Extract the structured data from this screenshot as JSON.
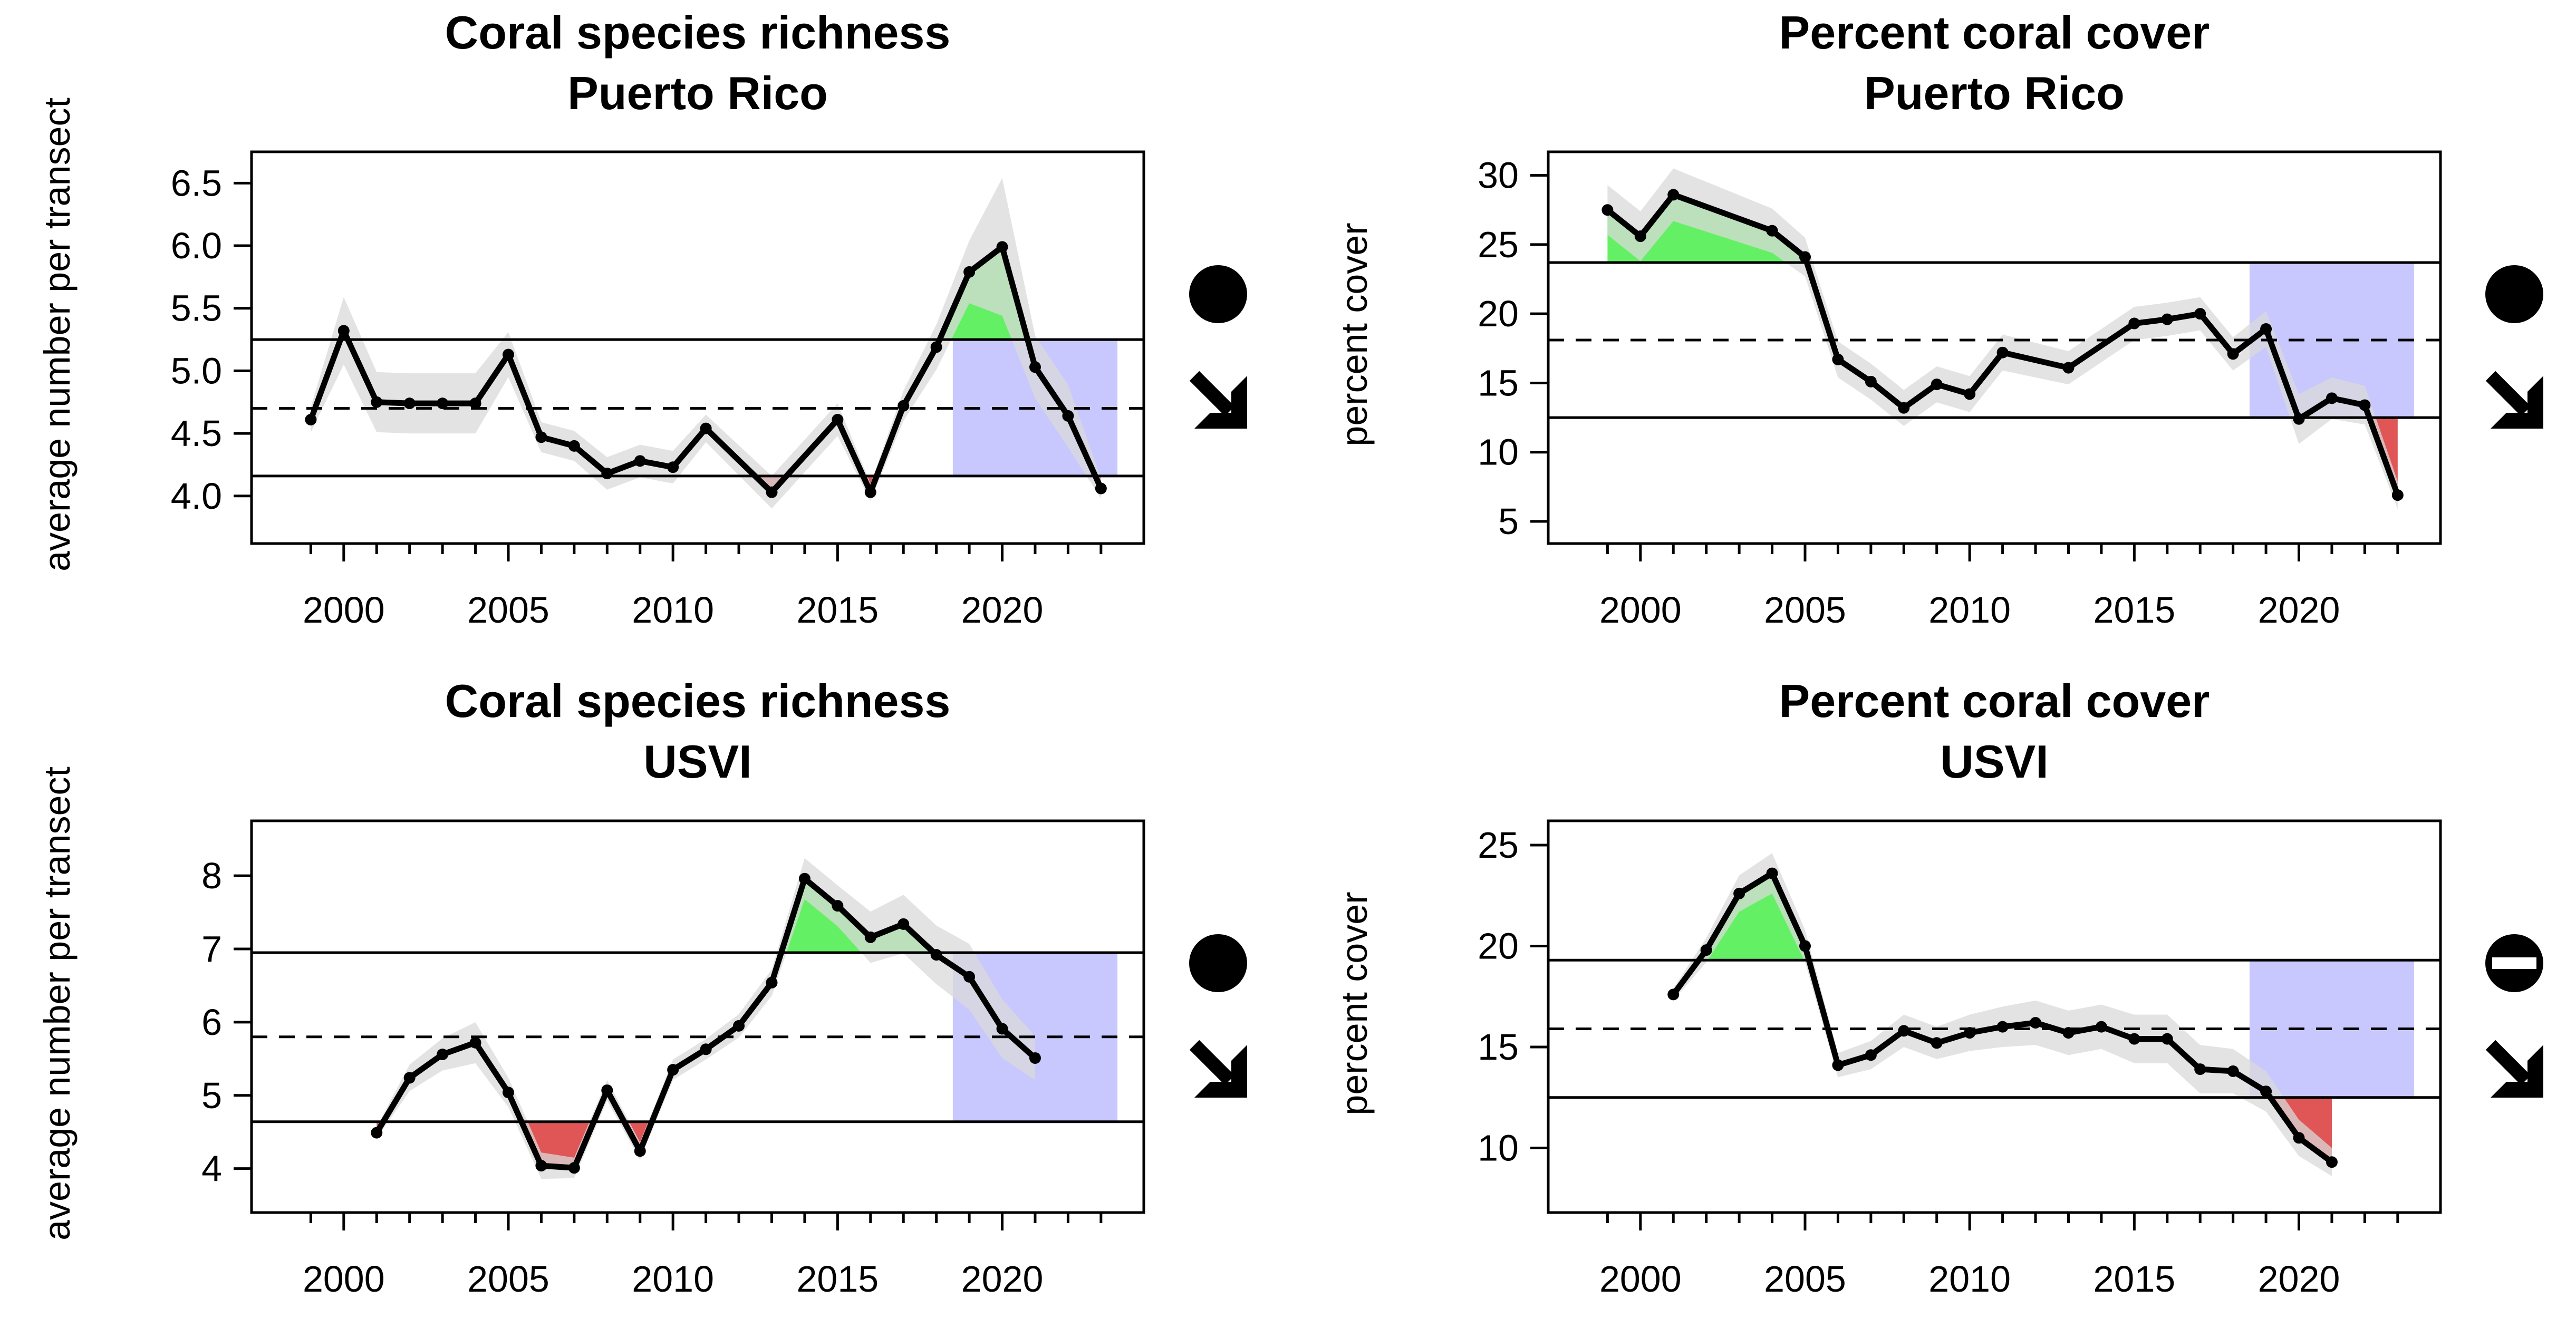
{
  "colors": {
    "above": "#64f064",
    "below": "#e05656",
    "recent_window": "#c8c8ff",
    "ci": "#d9d9d9",
    "line": "#000000"
  },
  "chart_data": [
    {
      "type": "line",
      "title": [
        "Coral species richness",
        "Puerto Rico"
      ],
      "xlabel": "",
      "ylabel": "average number per transect",
      "xlim": [
        1997.2,
        2024.3
      ],
      "ylim": [
        3.62,
        6.75
      ],
      "xticks": [
        2000,
        2005,
        2010,
        2015,
        2020
      ],
      "yticks": [
        4.0,
        4.5,
        5.0,
        5.5,
        6.0,
        6.5
      ],
      "ytick_labels": [
        "4.0",
        "4.5",
        "5.0",
        "5.5",
        "6.0",
        "6.5"
      ],
      "mean": 4.7,
      "upper_sd": 5.25,
      "lower_sd": 4.16,
      "recent_window": [
        2018.5,
        2023.5
      ],
      "x": [
        1999,
        2000,
        2001,
        2002,
        2003,
        2004,
        2005,
        2006,
        2007,
        2008,
        2009,
        2010,
        2011,
        2013,
        2015,
        2016,
        2017,
        2018,
        2019,
        2020,
        2021,
        2022,
        2023
      ],
      "y": [
        4.61,
        5.32,
        4.75,
        4.74,
        4.74,
        4.74,
        5.13,
        4.47,
        4.4,
        4.18,
        4.28,
        4.23,
        4.54,
        4.03,
        4.61,
        4.03,
        4.72,
        5.19,
        5.79,
        5.99,
        5.03,
        4.64,
        4.06
      ],
      "ci_halfwidth": [
        0.1,
        0.27,
        0.24,
        0.24,
        0.24,
        0.24,
        0.18,
        0.12,
        0.12,
        0.13,
        0.13,
        0.13,
        0.11,
        0.13,
        0.13,
        0.07,
        0.12,
        0.18,
        0.25,
        0.55,
        0.25,
        0.25,
        0.08
      ],
      "status_icons": [
        "filled-circle-icon",
        "arrow-down-right-icon"
      ]
    },
    {
      "type": "line",
      "title": [
        "Percent coral cover",
        "Puerto Rico"
      ],
      "xlabel": "",
      "ylabel": "percent cover",
      "xlim": [
        1997.2,
        2024.3
      ],
      "ylim": [
        3.4,
        31.7
      ],
      "xticks": [
        2000,
        2005,
        2010,
        2015,
        2020
      ],
      "yticks": [
        5,
        10,
        15,
        20,
        25,
        30
      ],
      "ytick_labels": [
        "5",
        "10",
        "15",
        "20",
        "25",
        "30"
      ],
      "mean": 18.1,
      "upper_sd": 23.7,
      "lower_sd": 12.5,
      "recent_window": [
        2018.5,
        2023.5
      ],
      "x": [
        1999,
        2000,
        2001,
        2004,
        2005,
        2006,
        2007,
        2008,
        2009,
        2010,
        2011,
        2013,
        2015,
        2016,
        2017,
        2018,
        2019,
        2020,
        2021,
        2022,
        2023
      ],
      "y": [
        27.5,
        25.6,
        28.6,
        26.0,
        24.1,
        16.7,
        15.1,
        13.2,
        14.9,
        14.2,
        17.2,
        16.1,
        19.3,
        19.6,
        20.0,
        17.1,
        18.9,
        12.4,
        13.9,
        13.4,
        6.9
      ],
      "ci_halfwidth": [
        1.8,
        1.8,
        1.9,
        1.6,
        1.4,
        1.3,
        1.3,
        1.3,
        1.3,
        1.3,
        1.3,
        1.2,
        1.2,
        1.2,
        1.2,
        1.2,
        1.3,
        1.8,
        1.5,
        1.4,
        1.0
      ],
      "status_icons": [
        "filled-circle-icon",
        "arrow-down-right-icon"
      ]
    },
    {
      "type": "line",
      "title": [
        "Coral species richness",
        "USVI"
      ],
      "xlabel": "",
      "ylabel": "average number per transect",
      "xlim": [
        1997.2,
        2024.3
      ],
      "ylim": [
        3.4,
        8.75
      ],
      "xticks": [
        2000,
        2005,
        2010,
        2015,
        2020
      ],
      "yticks": [
        4,
        5,
        6,
        7,
        8
      ],
      "ytick_labels": [
        "4",
        "5",
        "6",
        "7",
        "8"
      ],
      "mean": 5.8,
      "upper_sd": 6.95,
      "lower_sd": 4.64,
      "recent_window": [
        2018.5,
        2023.5
      ],
      "x": [
        2001,
        2002,
        2003,
        2004,
        2005,
        2006,
        2007,
        2008,
        2009,
        2010,
        2011,
        2012,
        2013,
        2014,
        2015,
        2016,
        2017,
        2018,
        2019,
        2020,
        2021
      ],
      "y": [
        4.49,
        5.24,
        5.56,
        5.72,
        5.04,
        4.04,
        4.01,
        5.07,
        4.24,
        5.35,
        5.63,
        5.95,
        6.54,
        7.96,
        7.59,
        7.16,
        7.34,
        6.92,
        6.62,
        5.91,
        5.51
      ],
      "ci_halfwidth": [
        0.08,
        0.18,
        0.22,
        0.28,
        0.2,
        0.18,
        0.14,
        0.14,
        0.12,
        0.14,
        0.14,
        0.16,
        0.18,
        0.28,
        0.28,
        0.35,
        0.4,
        0.4,
        0.45,
        0.4,
        0.3
      ],
      "status_icons": [
        "filled-circle-icon",
        "arrow-down-right-icon"
      ]
    },
    {
      "type": "line",
      "title": [
        "Percent coral cover",
        "USVI"
      ],
      "xlabel": "",
      "ylabel": "percent cover",
      "xlim": [
        1997.2,
        2024.3
      ],
      "ylim": [
        6.8,
        26.2
      ],
      "xticks": [
        2000,
        2005,
        2010,
        2015,
        2020
      ],
      "yticks": [
        10,
        15,
        20,
        25
      ],
      "ytick_labels": [
        "10",
        "15",
        "20",
        "25"
      ],
      "mean": 15.9,
      "upper_sd": 19.3,
      "lower_sd": 12.5,
      "recent_window": [
        2018.5,
        2023.5
      ],
      "x": [
        2001,
        2002,
        2003,
        2004,
        2005,
        2006,
        2007,
        2008,
        2009,
        2010,
        2011,
        2012,
        2013,
        2014,
        2015,
        2016,
        2017,
        2018,
        2019,
        2020,
        2021
      ],
      "y": [
        17.6,
        19.8,
        22.6,
        23.6,
        20.0,
        14.1,
        14.6,
        15.8,
        15.2,
        15.7,
        16.0,
        16.2,
        15.7,
        16.0,
        15.4,
        15.4,
        13.9,
        13.8,
        12.8,
        10.5,
        9.3
      ],
      "ci_halfwidth": [
        0.3,
        0.6,
        0.9,
        1.0,
        0.8,
        0.6,
        0.7,
        0.8,
        0.8,
        0.9,
        1.0,
        1.1,
        1.1,
        1.1,
        1.2,
        1.2,
        1.2,
        1.1,
        1.0,
        0.9,
        0.7
      ],
      "status_icons": [
        "circle-minus-icon",
        "arrow-down-right-icon"
      ]
    }
  ]
}
